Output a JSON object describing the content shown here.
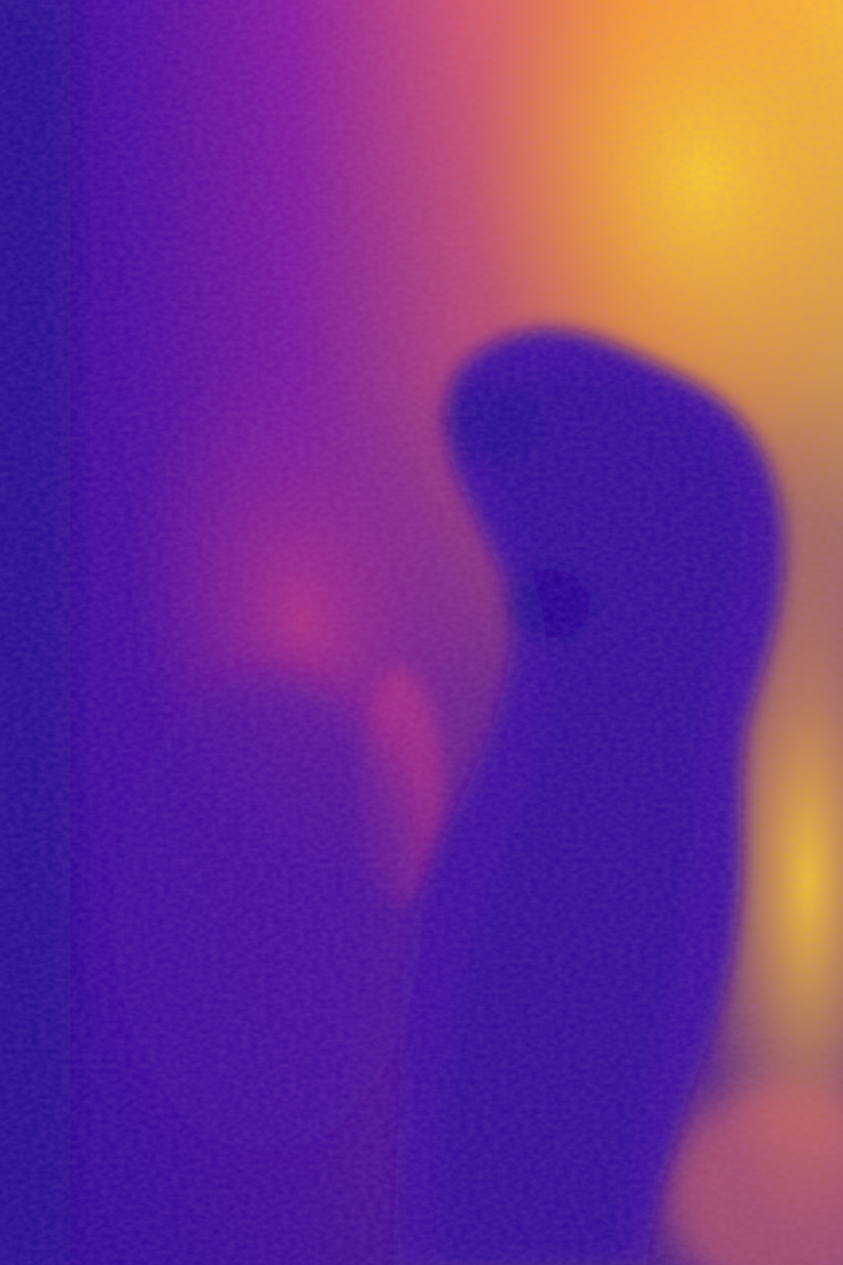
{
  "image": {
    "kind": "thermal-camera-frame",
    "colormap": "plasma",
    "palette": {
      "coldest": "#20068f",
      "cool": "#4a0aa2",
      "mid_cool": "#7a12a6",
      "mid": "#b42f8e",
      "warm": "#e5665b",
      "hot": "#f89a32",
      "hottest": "#fcd225"
    },
    "subject": "cool-silhouette"
  }
}
